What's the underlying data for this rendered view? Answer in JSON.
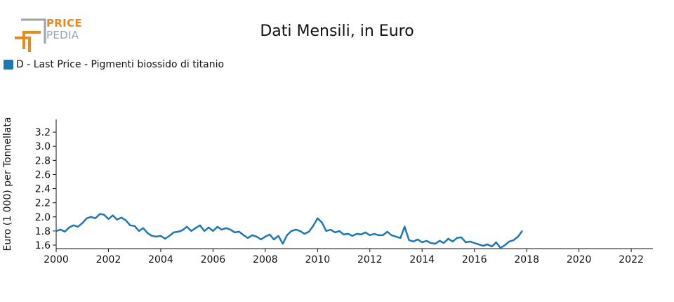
{
  "brand": {
    "name_top": "PRICE",
    "name_bottom": "PEDIA",
    "colors": {
      "orange": "#e8891b",
      "gray": "#9aa3a9"
    }
  },
  "chart_data": {
    "type": "line",
    "title": "Dati Mensili, in Euro",
    "xlabel": "",
    "ylabel": "Euro (1 000) per Tonnellata",
    "xlim": [
      2000,
      2022.83
    ],
    "ylim": [
      1.55,
      3.38
    ],
    "x_ticks": [
      2000,
      2002,
      2004,
      2006,
      2008,
      2010,
      2012,
      2014,
      2016,
      2018,
      2020,
      2022
    ],
    "y_ticks": [
      "1.6",
      "1.8",
      "2.0",
      "2.2",
      "2.4",
      "2.6",
      "2.8",
      "3.0",
      "3.2"
    ],
    "grid": false,
    "legend_position": "top-left",
    "series": [
      {
        "name": "D - Last Price - Pigmenti biossido di titanio",
        "color": "#1f77b4",
        "points": [
          [
            2000.0,
            1.8
          ],
          [
            2000.17,
            1.82
          ],
          [
            2000.33,
            1.79
          ],
          [
            2000.5,
            1.85
          ],
          [
            2000.67,
            1.88
          ],
          [
            2000.83,
            1.86
          ],
          [
            2001.0,
            1.91
          ],
          [
            2001.17,
            1.98
          ],
          [
            2001.33,
            2.0
          ],
          [
            2001.5,
            1.98
          ],
          [
            2001.67,
            2.04
          ],
          [
            2001.83,
            2.03
          ],
          [
            2002.0,
            1.97
          ],
          [
            2002.17,
            2.02
          ],
          [
            2002.33,
            1.96
          ],
          [
            2002.5,
            1.99
          ],
          [
            2002.67,
            1.95
          ],
          [
            2002.83,
            1.88
          ],
          [
            2003.0,
            1.87
          ],
          [
            2003.17,
            1.8
          ],
          [
            2003.33,
            1.84
          ],
          [
            2003.5,
            1.77
          ],
          [
            2003.67,
            1.73
          ],
          [
            2003.83,
            1.72
          ],
          [
            2004.0,
            1.73
          ],
          [
            2004.17,
            1.69
          ],
          [
            2004.33,
            1.73
          ],
          [
            2004.5,
            1.78
          ],
          [
            2004.67,
            1.79
          ],
          [
            2004.83,
            1.81
          ],
          [
            2005.0,
            1.86
          ],
          [
            2005.17,
            1.8
          ],
          [
            2005.33,
            1.84
          ],
          [
            2005.5,
            1.88
          ],
          [
            2005.67,
            1.8
          ],
          [
            2005.83,
            1.85
          ],
          [
            2006.0,
            1.8
          ],
          [
            2006.17,
            1.86
          ],
          [
            2006.33,
            1.82
          ],
          [
            2006.5,
            1.84
          ],
          [
            2006.67,
            1.82
          ],
          [
            2006.83,
            1.78
          ],
          [
            2007.0,
            1.79
          ],
          [
            2007.17,
            1.74
          ],
          [
            2007.33,
            1.7
          ],
          [
            2007.5,
            1.74
          ],
          [
            2007.67,
            1.72
          ],
          [
            2007.83,
            1.68
          ],
          [
            2008.0,
            1.72
          ],
          [
            2008.17,
            1.75
          ],
          [
            2008.33,
            1.68
          ],
          [
            2008.5,
            1.73
          ],
          [
            2008.67,
            1.62
          ],
          [
            2008.83,
            1.74
          ],
          [
            2009.0,
            1.8
          ],
          [
            2009.17,
            1.82
          ],
          [
            2009.33,
            1.8
          ],
          [
            2009.5,
            1.76
          ],
          [
            2009.67,
            1.79
          ],
          [
            2009.83,
            1.87
          ],
          [
            2010.0,
            1.98
          ],
          [
            2010.17,
            1.92
          ],
          [
            2010.33,
            1.8
          ],
          [
            2010.5,
            1.82
          ],
          [
            2010.67,
            1.78
          ],
          [
            2010.83,
            1.8
          ],
          [
            2011.0,
            1.75
          ],
          [
            2011.17,
            1.76
          ],
          [
            2011.33,
            1.73
          ],
          [
            2011.5,
            1.76
          ],
          [
            2011.67,
            1.75
          ],
          [
            2011.83,
            1.78
          ],
          [
            2012.0,
            1.74
          ],
          [
            2012.17,
            1.76
          ],
          [
            2012.33,
            1.74
          ],
          [
            2012.5,
            1.74
          ],
          [
            2012.67,
            1.79
          ],
          [
            2012.83,
            1.74
          ],
          [
            2013.0,
            1.72
          ],
          [
            2013.17,
            1.7
          ],
          [
            2013.33,
            1.86
          ],
          [
            2013.5,
            1.67
          ],
          [
            2013.67,
            1.65
          ],
          [
            2013.83,
            1.68
          ],
          [
            2014.0,
            1.64
          ],
          [
            2014.17,
            1.66
          ],
          [
            2014.33,
            1.63
          ],
          [
            2014.5,
            1.62
          ],
          [
            2014.67,
            1.66
          ],
          [
            2014.83,
            1.63
          ],
          [
            2015.0,
            1.69
          ],
          [
            2015.17,
            1.65
          ],
          [
            2015.33,
            1.7
          ],
          [
            2015.5,
            1.71
          ],
          [
            2015.67,
            1.64
          ],
          [
            2015.83,
            1.65
          ],
          [
            2016.0,
            1.63
          ],
          [
            2016.17,
            1.61
          ],
          [
            2016.33,
            1.59
          ],
          [
            2016.5,
            1.61
          ],
          [
            2016.67,
            1.58
          ],
          [
            2016.83,
            1.64
          ],
          [
            2017.0,
            1.56
          ],
          [
            2017.17,
            1.6
          ],
          [
            2017.33,
            1.65
          ],
          [
            2017.5,
            1.67
          ],
          [
            2017.67,
            1.72
          ],
          [
            2017.83,
            1.8
          ]
        ]
      }
    ]
  }
}
